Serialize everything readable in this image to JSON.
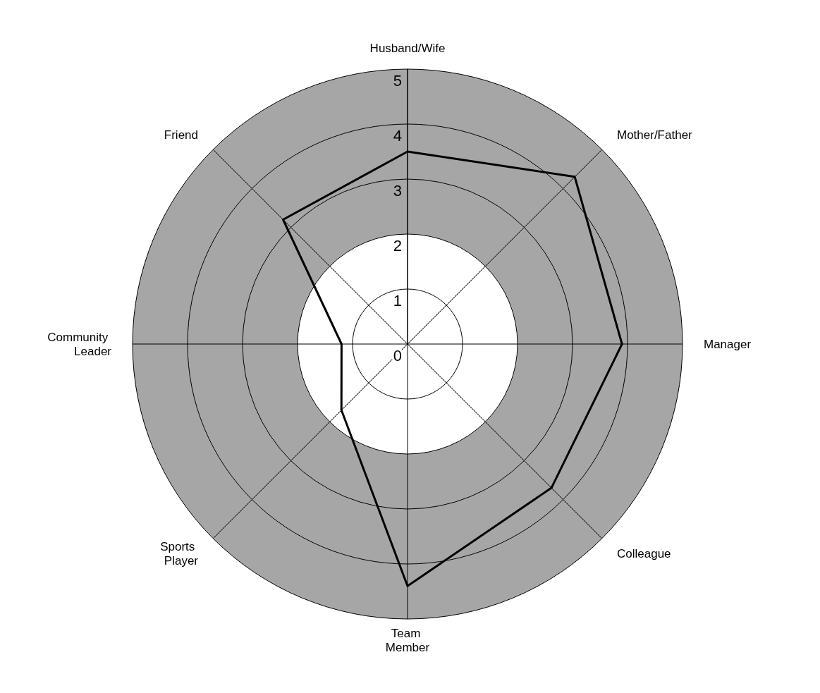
{
  "chart_data": {
    "type": "radar",
    "categories": [
      "Husband/Wife",
      "Mother/Father",
      "Manager",
      "Colleague",
      "Team Member",
      "Sports Player",
      "Community Leader",
      "Friend"
    ],
    "series": [
      {
        "color": "#000000",
        "values": [
          3.5,
          4.3,
          3.9,
          3.7,
          4.4,
          1.7,
          1.2,
          3.2
        ]
      }
    ],
    "ylim": [
      0,
      5
    ],
    "yticks": [
      0,
      1,
      2,
      3,
      4,
      5
    ],
    "grid": true,
    "marker": "none",
    "line_style": "solid"
  }
}
